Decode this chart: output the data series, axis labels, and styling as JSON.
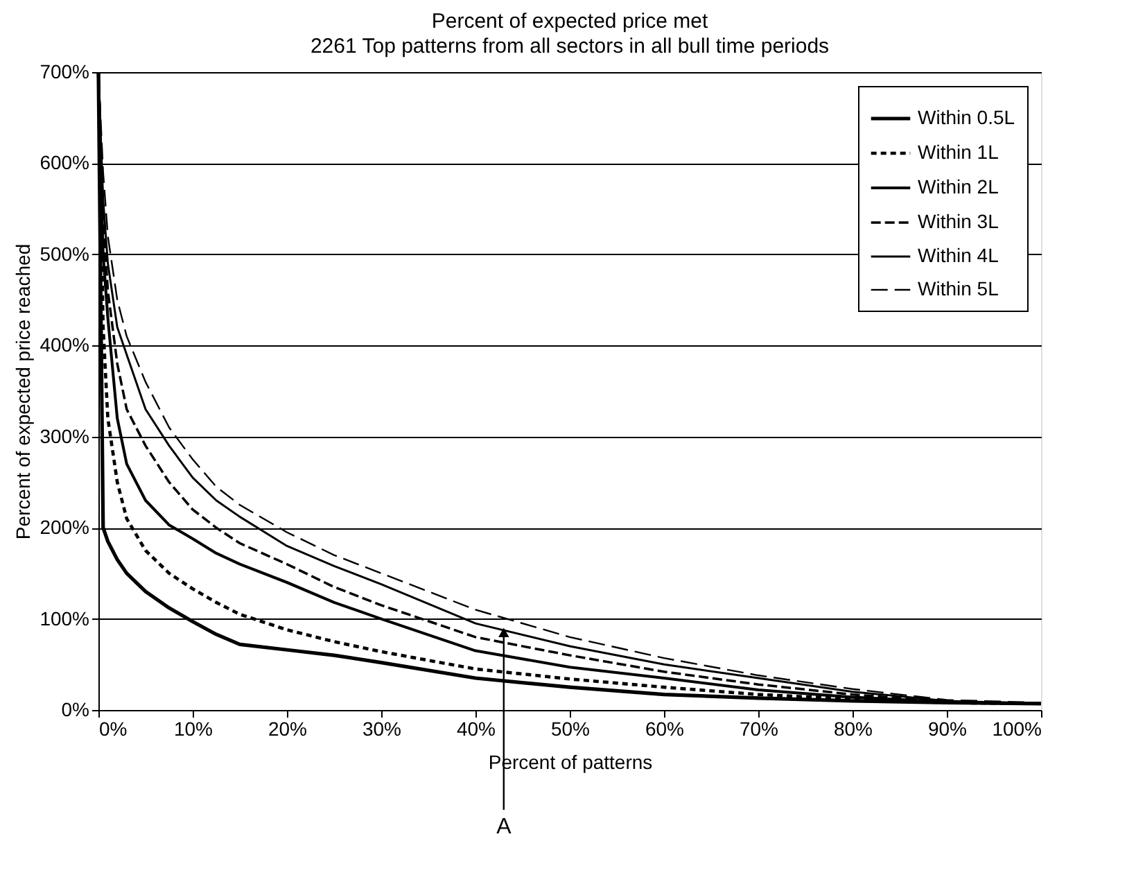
{
  "chart_data": {
    "type": "line",
    "title": "Percent of expected price met",
    "subtitle": "2261 Top patterns from all sectors in all bull time periods",
    "xlabel": "Percent of patterns",
    "ylabel": "Percent of expected price reached",
    "x": [
      0,
      0.5,
      1,
      2,
      3,
      5,
      7.5,
      10,
      12.5,
      15,
      20,
      25,
      30,
      40,
      50,
      60,
      70,
      80,
      90,
      100
    ],
    "series": [
      {
        "name": "Within 0.5L",
        "color": "#000000",
        "line_style": "solid",
        "values": [
          700,
          200,
          185,
          165,
          150,
          130,
          112,
          97,
          83,
          72,
          66,
          60,
          52,
          35,
          25,
          17,
          13,
          10,
          8,
          7
        ]
      },
      {
        "name": "Within 1L",
        "color": "#000000",
        "line_style": "dashed",
        "values": [
          700,
          420,
          320,
          250,
          210,
          175,
          150,
          133,
          118,
          105,
          88,
          75,
          64,
          45,
          34,
          25,
          17,
          12,
          8,
          7
        ]
      },
      {
        "name": "Within 2L",
        "color": "#000000",
        "line_style": "solid",
        "values": [
          700,
          500,
          430,
          320,
          270,
          230,
          203,
          188,
          172,
          160,
          140,
          118,
          100,
          65,
          47,
          35,
          22,
          14,
          9,
          7
        ]
      },
      {
        "name": "Within 3L",
        "color": "#000000",
        "line_style": "dashed",
        "values": [
          700,
          540,
          460,
          380,
          330,
          290,
          250,
          220,
          200,
          183,
          160,
          135,
          115,
          80,
          60,
          42,
          28,
          17,
          9,
          7
        ]
      },
      {
        "name": "Within 4L",
        "color": "#000000",
        "line_style": "solid",
        "values": [
          700,
          560,
          490,
          420,
          390,
          330,
          290,
          255,
          230,
          212,
          180,
          158,
          138,
          95,
          70,
          50,
          35,
          20,
          10,
          7
        ]
      },
      {
        "name": "Within 5L",
        "color": "#000000",
        "line_style": "dashed",
        "values": [
          700,
          590,
          520,
          450,
          410,
          360,
          310,
          275,
          245,
          225,
          195,
          170,
          150,
          110,
          80,
          57,
          38,
          23,
          11,
          8
        ]
      }
    ],
    "xlim": [
      0,
      100
    ],
    "ylim": [
      0,
      700
    ],
    "xticks": [
      {
        "value": 0,
        "label": "0%"
      },
      {
        "value": 10,
        "label": "10%"
      },
      {
        "value": 20,
        "label": "20%"
      },
      {
        "value": 30,
        "label": "30%"
      },
      {
        "value": 40,
        "label": "40%"
      },
      {
        "value": 50,
        "label": "50%"
      },
      {
        "value": 60,
        "label": "60%"
      },
      {
        "value": 70,
        "label": "70%"
      },
      {
        "value": 80,
        "label": "80%"
      },
      {
        "value": 90,
        "label": "90%"
      },
      {
        "value": 100,
        "label": "100%"
      }
    ],
    "yticks": [
      {
        "value": 0,
        "label": "0%"
      },
      {
        "value": 100,
        "label": "100%"
      },
      {
        "value": 200,
        "label": "200%"
      },
      {
        "value": 300,
        "label": "300%"
      },
      {
        "value": 400,
        "label": "400%"
      },
      {
        "value": 500,
        "label": "500%"
      },
      {
        "value": 600,
        "label": "600%"
      },
      {
        "value": 700,
        "label": "700%"
      }
    ],
    "grid": "y",
    "legend": "top right",
    "marker": "none",
    "annotations": [
      {
        "text": "A",
        "x": 43,
        "y": 85
      }
    ]
  }
}
